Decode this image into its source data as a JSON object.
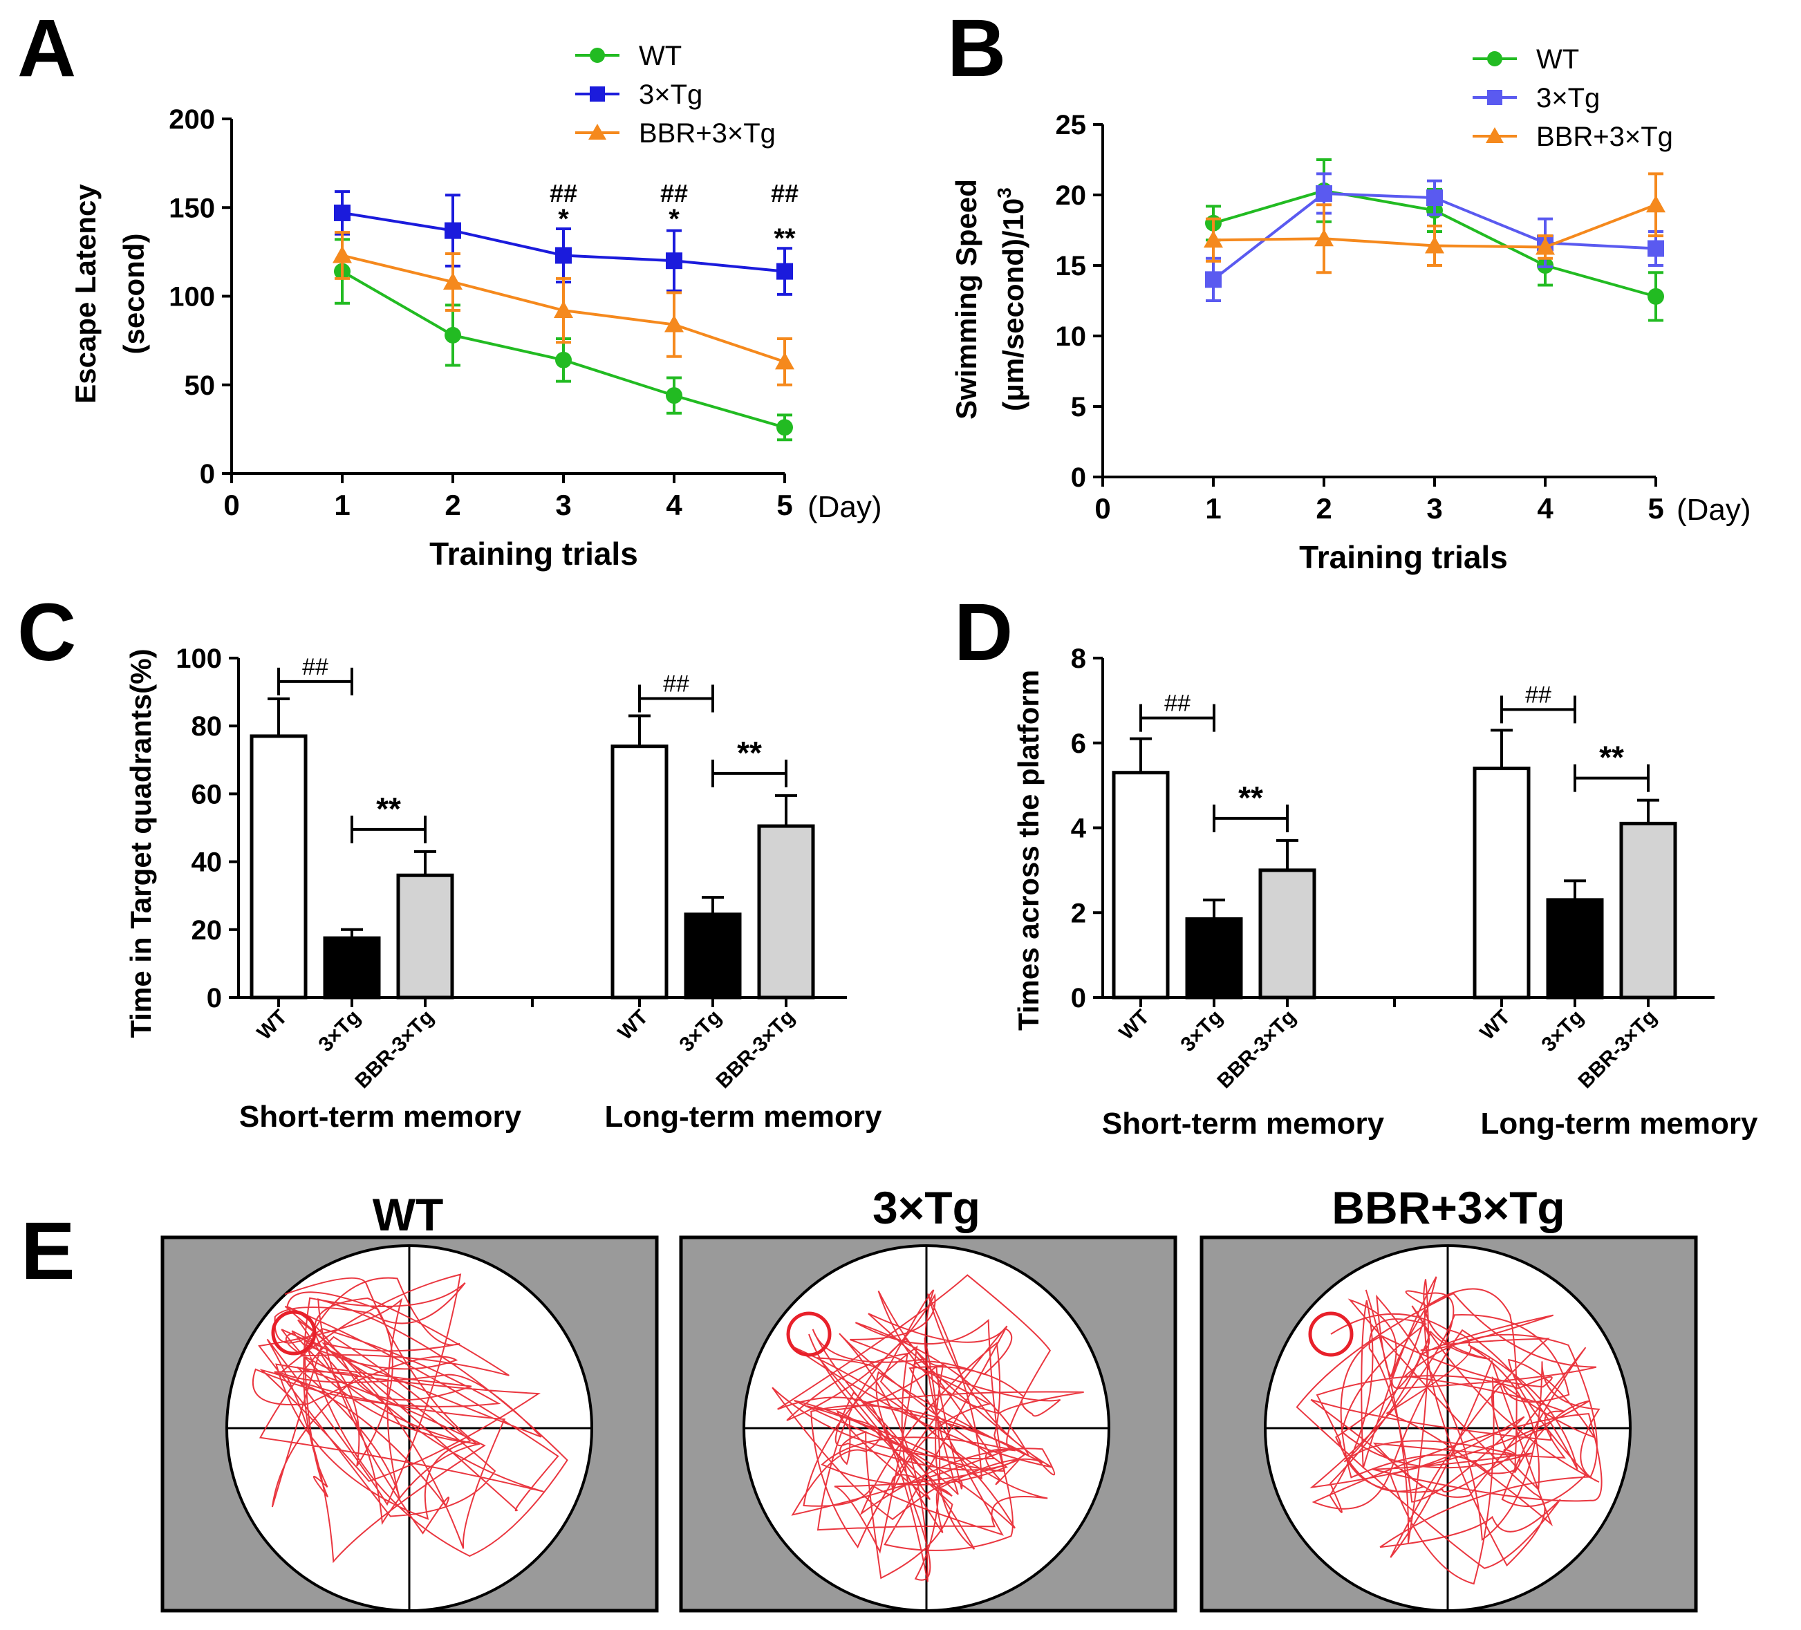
{
  "panels": {
    "a": "A",
    "b": "B",
    "c": "C",
    "d": "D",
    "e": "E"
  },
  "colors": {
    "wt": "#22bb22",
    "tg": "#1b1bdc",
    "tg_b": "#5a5af0",
    "bbr": "#f5891d",
    "track": "#e8202a",
    "pool_bg": "#9a9a9a"
  },
  "chart_data": [
    {
      "id": "A",
      "type": "line",
      "categories": [
        "1",
        "2",
        "3",
        "4",
        "5"
      ],
      "series": [
        {
          "name": "WT",
          "values": [
            114,
            78,
            64,
            44,
            26
          ],
          "errors": [
            18,
            17,
            12,
            10,
            7
          ]
        },
        {
          "name": "3×Tg",
          "values": [
            147,
            137,
            123,
            120,
            114
          ],
          "errors": [
            12,
            20,
            15,
            17,
            13
          ]
        },
        {
          "name": "BBR+3×Tg",
          "values": [
            123,
            108,
            92,
            84,
            63
          ],
          "errors": [
            13,
            16,
            18,
            18,
            13
          ]
        }
      ],
      "annotations": [
        {
          "day": "3",
          "hash": "##",
          "star": "*"
        },
        {
          "day": "4",
          "hash": "##",
          "star": "*"
        },
        {
          "day": "5",
          "hash": "##",
          "star": "**"
        }
      ],
      "ylim": [
        0,
        200
      ],
      "yticks": [
        "0",
        "50",
        "100",
        "150",
        "200"
      ],
      "xticks": [
        "0",
        "1",
        "2",
        "3",
        "4",
        "5"
      ],
      "xlabel": "Training trials",
      "xunit": "(Day)",
      "ylabel_line1": "Escape Latency",
      "ylabel_line2": "(second)"
    },
    {
      "id": "B",
      "type": "line",
      "categories": [
        "1",
        "2",
        "3",
        "4",
        "5"
      ],
      "series": [
        {
          "name": "WT",
          "values": [
            18,
            20.3,
            18.9,
            15,
            12.8
          ],
          "errors": [
            1.2,
            2.2,
            1.5,
            1.4,
            1.7
          ]
        },
        {
          "name": "3×Tg",
          "values": [
            14,
            20.1,
            19.8,
            16.6,
            16.2
          ],
          "errors": [
            1.5,
            1.4,
            1.2,
            1.7,
            1.2
          ]
        },
        {
          "name": "BBR+3×Tg",
          "values": [
            16.8,
            16.9,
            16.4,
            16.3,
            19.3
          ],
          "errors": [
            1.5,
            2.4,
            1.4,
            0.8,
            2.2
          ]
        }
      ],
      "ylim": [
        0,
        25
      ],
      "yticks": [
        "0",
        "5",
        "10",
        "15",
        "20",
        "25"
      ],
      "xticks": [
        "0",
        "1",
        "2",
        "3",
        "4",
        "5"
      ],
      "xlabel": "Training trials",
      "xunit": "(Day)",
      "ylabel_line1": "Swimming Speed",
      "ylabel_line2": "(μm/second)/10",
      "ylabel_sup": "3"
    },
    {
      "id": "C",
      "type": "bar",
      "groups": [
        {
          "name": "Short-term memory",
          "categories": [
            "WT",
            "3×Tg",
            "BBR-3×Tg"
          ],
          "values": [
            77,
            17.5,
            36
          ],
          "errors": [
            11,
            2.5,
            7
          ]
        },
        {
          "name": "Long-term memory",
          "categories": [
            "WT",
            "3×Tg",
            "BBR-3×Tg"
          ],
          "values": [
            74,
            24.5,
            50.5
          ],
          "errors": [
            9,
            5,
            9
          ]
        }
      ],
      "brackets": [
        {
          "hash": "##",
          "star": "**"
        },
        {
          "hash": "##",
          "star": "**"
        }
      ],
      "ylim": [
        0,
        100
      ],
      "yticks": [
        "0",
        "20",
        "40",
        "60",
        "80",
        "100"
      ],
      "ylabel": "Time in Target quadrants(%)"
    },
    {
      "id": "D",
      "type": "bar",
      "groups": [
        {
          "name": "Short-term memory",
          "categories": [
            "WT",
            "3×Tg",
            "BBR-3×Tg"
          ],
          "values": [
            5.3,
            1.85,
            3
          ],
          "errors": [
            0.8,
            0.45,
            0.7
          ]
        },
        {
          "name": "Long-term memory",
          "categories": [
            "WT",
            "3×Tg",
            "BBR-3×Tg"
          ],
          "values": [
            5.4,
            2.3,
            4.1
          ],
          "errors": [
            0.9,
            0.45,
            0.55
          ]
        }
      ],
      "brackets": [
        {
          "hash": "##",
          "star": "**"
        },
        {
          "hash": "##",
          "star": "**"
        }
      ],
      "ylim": [
        0,
        8
      ],
      "yticks": [
        "0",
        "2",
        "4",
        "6",
        "8"
      ],
      "ylabel": "Times across the platform"
    }
  ],
  "swim_paths": {
    "titles": [
      "WT",
      "3×Tg",
      "BBR+3×Tg"
    ]
  }
}
